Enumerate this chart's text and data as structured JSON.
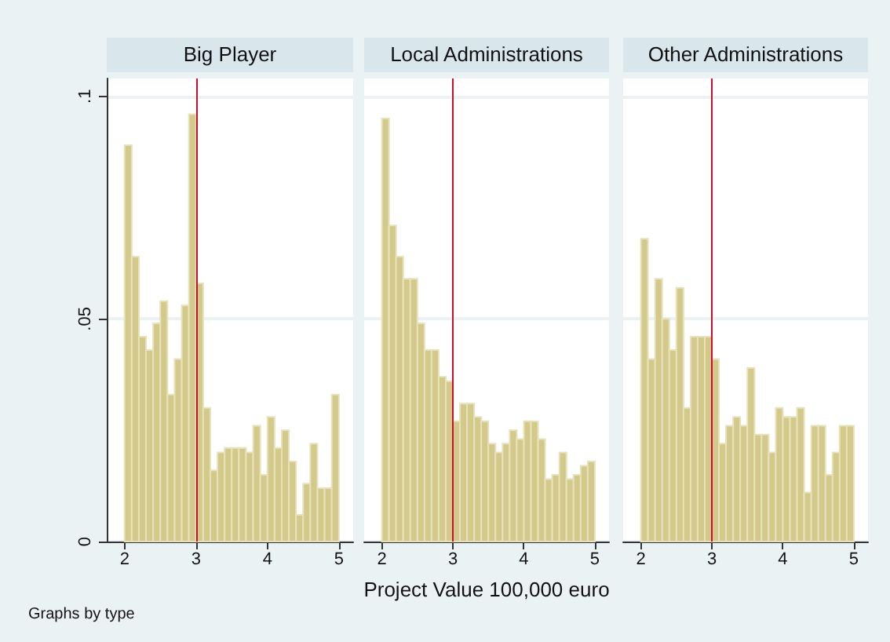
{
  "chart_data": [
    {
      "type": "histogram",
      "title": "Big Player",
      "bins": [
        2,
        2.1,
        2.2,
        2.3,
        2.4,
        2.5,
        2.6,
        2.7,
        2.8,
        2.9,
        3,
        3.1,
        3.2,
        3.3,
        3.4,
        3.5,
        3.6,
        3.7,
        3.8,
        3.9,
        4,
        4.1,
        4.2,
        4.3,
        4.4,
        4.5,
        4.6,
        4.7,
        4.8,
        4.9,
        5
      ],
      "values": [
        0.089,
        0.064,
        0.046,
        0.043,
        0.049,
        0.054,
        0.033,
        0.041,
        0.053,
        0.096,
        0.058,
        0.03,
        0.016,
        0.02,
        0.021,
        0.021,
        0.021,
        0.02,
        0.026,
        0.015,
        0.028,
        0.021,
        0.025,
        0.018,
        0.006,
        0.013,
        0.022,
        0.012,
        0.012,
        0.033
      ],
      "color": "#d3c98a",
      "xlim": [
        1.75,
        5.2
      ],
      "xticks": [
        2,
        3,
        4,
        5
      ],
      "ylim": [
        0,
        0.104
      ],
      "yticks": [
        0,
        {
          "value": 0.05,
          "label": ".05"
        },
        {
          "value": 0.1,
          "label": ".1"
        }
      ],
      "grid": "y",
      "ref_lines": [
        {
          "axis": "x",
          "value": 3,
          "color": "#c8102e"
        }
      ],
      "annotations": [
        "Graphs by type"
      ]
    },
    {
      "type": "histogram",
      "title": "Local Administrations",
      "xlabel": "Project Value 100,000 euro",
      "bins": [
        2,
        2.1,
        2.2,
        2.3,
        2.4,
        2.5,
        2.6,
        2.7,
        2.8,
        2.9,
        3,
        3.1,
        3.2,
        3.3,
        3.4,
        3.5,
        3.6,
        3.7,
        3.8,
        3.9,
        4,
        4.1,
        4.2,
        4.3,
        4.4,
        4.5,
        4.6,
        4.7,
        4.8,
        4.9,
        5
      ],
      "values": [
        0.095,
        0.071,
        0.064,
        0.059,
        0.059,
        0.049,
        0.043,
        0.043,
        0.037,
        0.036,
        0.027,
        0.031,
        0.031,
        0.028,
        0.027,
        0.022,
        0.02,
        0.022,
        0.025,
        0.023,
        0.027,
        0.027,
        0.023,
        0.014,
        0.015,
        0.02,
        0.014,
        0.015,
        0.017,
        0.018
      ],
      "color": "#d3c98a",
      "xlim": [
        1.75,
        5.2
      ],
      "xticks": [
        2,
        3,
        4,
        5
      ],
      "ylim": [
        0,
        0.104
      ],
      "yticks": [
        0,
        0.05,
        0.1
      ],
      "grid": "y",
      "tick_labels": "x",
      "ref_lines": [
        {
          "axis": "x",
          "value": 3,
          "color": "#c8102e"
        }
      ]
    },
    {
      "type": "histogram",
      "title": "Other Administrations",
      "bins": [
        2,
        2.1,
        2.2,
        2.3,
        2.4,
        2.5,
        2.6,
        2.7,
        2.8,
        2.9,
        3,
        3.1,
        3.2,
        3.3,
        3.4,
        3.5,
        3.6,
        3.7,
        3.8,
        3.9,
        4,
        4.1,
        4.2,
        4.3,
        4.4,
        4.5,
        4.6,
        4.7,
        4.8,
        4.9,
        5
      ],
      "values": [
        0.068,
        0.041,
        0.059,
        0.05,
        0.043,
        0.057,
        0.03,
        0.046,
        0.046,
        0.046,
        0.041,
        0.022,
        0.026,
        0.028,
        0.026,
        0.039,
        0.024,
        0.024,
        0.02,
        0.03,
        0.028,
        0.028,
        0.03,
        0.011,
        0.026,
        0.026,
        0.015,
        0.02,
        0.026,
        0.026
      ],
      "color": "#d3c98a",
      "xlim": [
        1.75,
        5.2
      ],
      "xticks": [
        2,
        3,
        4,
        5
      ],
      "ylim": [
        0,
        0.104
      ],
      "yticks": [
        0,
        0.05,
        0.1
      ],
      "grid": "y",
      "tick_labels": "x",
      "ref_lines": [
        {
          "axis": "x",
          "value": 3,
          "color": "#c8102e"
        }
      ]
    }
  ]
}
